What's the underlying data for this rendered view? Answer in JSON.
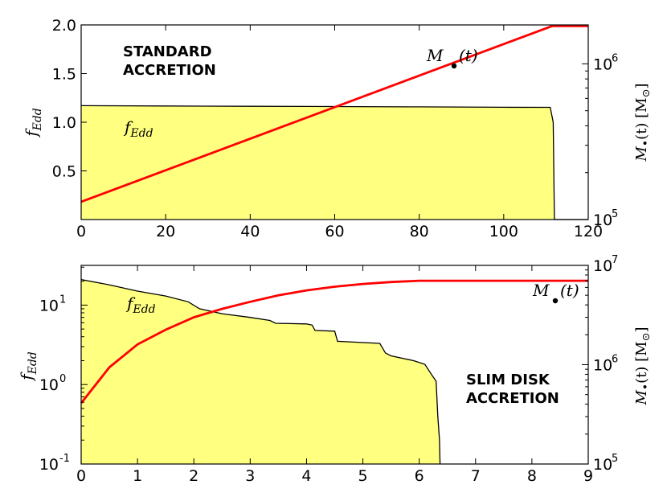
{
  "chart_data": [
    {
      "type": "area",
      "panel": "top",
      "annotation_lines": [
        "STANDARD",
        "ACCRETION"
      ],
      "xlim": [
        0,
        120
      ],
      "xticks": [
        "0",
        "20",
        "40",
        "60",
        "80",
        "100",
        "120"
      ],
      "left_axis": {
        "label": "f",
        "label_sub": "Edd",
        "ylim": [
          0,
          2.0
        ],
        "yticks": [
          "0.5",
          "1.0",
          "1.5",
          "2.0"
        ],
        "scale": "linear"
      },
      "right_axis": {
        "label_pre": "M",
        "label_paren": "(t) [M",
        "label_close": "]",
        "scale": "log",
        "ylim_log10": [
          5,
          6.25
        ],
        "yticks": [
          {
            "base": "10",
            "exp": "5"
          },
          {
            "base": "10",
            "exp": "6"
          }
        ]
      },
      "series": [
        {
          "name_main": "f",
          "name_sub": "Edd",
          "axis": "left",
          "color": "#ffff80",
          "x": [
            0,
            20,
            40,
            60,
            80,
            100,
            111,
            111.7,
            112,
            120
          ],
          "y": [
            1.17,
            1.167,
            1.164,
            1.161,
            1.158,
            1.154,
            1.153,
            1.0,
            0.0,
            0.0
          ]
        },
        {
          "name_main": "M",
          "name_rest": "(t)",
          "axis": "right",
          "color": "#ff0000",
          "x": [
            0,
            111.5,
            120
          ],
          "y": [
            130000,
            1750000,
            1750000
          ]
        }
      ]
    },
    {
      "type": "area",
      "panel": "bottom",
      "annotation_lines": [
        "SLIM DISK",
        "ACCRETION"
      ],
      "xlim": [
        0,
        9
      ],
      "xticks": [
        "0",
        "1",
        "2",
        "3",
        "4",
        "5",
        "6",
        "7",
        "8",
        "9"
      ],
      "left_axis": {
        "label": "f",
        "label_sub": "Edd",
        "scale": "log",
        "ylim_log10": [
          -1,
          1.5
        ],
        "yticks": [
          {
            "base": "10",
            "exp": "-1"
          },
          {
            "base": "10",
            "exp": "0"
          },
          {
            "base": "10",
            "exp": "1"
          }
        ]
      },
      "right_axis": {
        "label_pre": "M",
        "label_paren": "(t) [M",
        "label_close": "]",
        "scale": "log",
        "ylim_log10": [
          5,
          7
        ],
        "yticks": [
          {
            "base": "10",
            "exp": "5"
          },
          {
            "base": "10",
            "exp": "6"
          },
          {
            "base": "10",
            "exp": "7"
          }
        ]
      },
      "series": [
        {
          "name_main": "f",
          "name_sub": "Edd",
          "axis": "left",
          "color": "#ffff80",
          "x": [
            0,
            0.5,
            1.0,
            1.5,
            1.9,
            2.1,
            2.5,
            3.0,
            3.35,
            3.45,
            4.0,
            4.1,
            4.15,
            4.5,
            4.55,
            5.3,
            5.4,
            5.5,
            5.9,
            6.1,
            6.2,
            6.3,
            6.33,
            6.36,
            6.37
          ],
          "y": [
            21,
            18,
            15,
            13,
            11,
            9,
            7.8,
            7,
            6.4,
            5.9,
            5.8,
            5.6,
            4.8,
            4.7,
            3.5,
            3.3,
            2.5,
            2.3,
            2.0,
            1.8,
            1.4,
            1.1,
            0.4,
            0.2,
            0.1
          ]
        },
        {
          "name_main": "M",
          "name_rest": "(t)",
          "axis": "right",
          "color": "#ff0000",
          "x": [
            0,
            0.5,
            1.0,
            1.5,
            2.0,
            2.5,
            3.0,
            3.5,
            4.0,
            4.5,
            5.0,
            5.5,
            6.0,
            6.2,
            9.0
          ],
          "y": [
            410000,
            940000,
            1600000,
            2250000,
            3000000,
            3650000,
            4300000,
            5000000,
            5600000,
            6100000,
            6500000,
            6800000,
            7000000,
            7000000,
            7000000
          ]
        }
      ]
    }
  ]
}
